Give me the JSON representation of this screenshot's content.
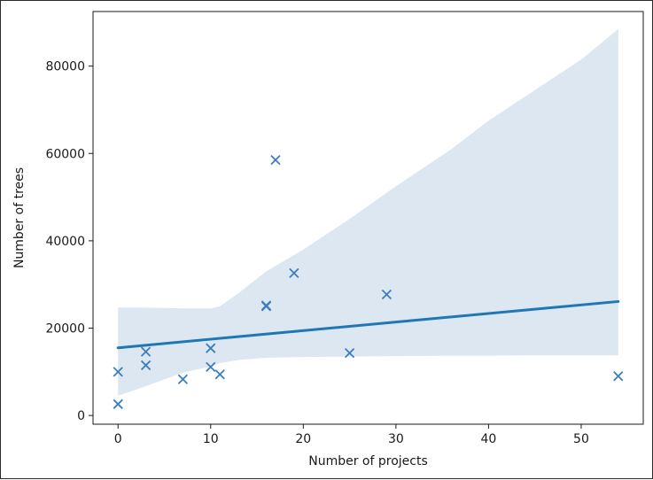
{
  "chart_data": {
    "type": "scatter",
    "title": "",
    "xlabel": "Number of projects",
    "ylabel": "Number of trees",
    "xlim": [
      -2.7,
      56.7
    ],
    "ylim": [
      -2000,
      92500
    ],
    "xticks": [
      0,
      10,
      20,
      30,
      40,
      50
    ],
    "yticks": [
      0,
      20000,
      40000,
      60000,
      80000
    ],
    "grid": false,
    "legend": "none",
    "marker": "x",
    "color": "#3a7ebf",
    "points": [
      {
        "x": 0,
        "y": 10000
      },
      {
        "x": 0,
        "y": 2600
      },
      {
        "x": 3,
        "y": 14600
      },
      {
        "x": 3,
        "y": 11500
      },
      {
        "x": 7,
        "y": 8300
      },
      {
        "x": 10,
        "y": 15400
      },
      {
        "x": 10,
        "y": 11100
      },
      {
        "x": 11,
        "y": 9400
      },
      {
        "x": 16,
        "y": 25000
      },
      {
        "x": 16,
        "y": 25200
      },
      {
        "x": 17,
        "y": 58500
      },
      {
        "x": 19,
        "y": 32600
      },
      {
        "x": 25,
        "y": 14300
      },
      {
        "x": 29,
        "y": 27700
      },
      {
        "x": 54,
        "y": 9000
      }
    ],
    "regression_line": {
      "x": [
        0,
        54
      ],
      "y": [
        15500,
        26100
      ],
      "color": "#1f77b4"
    },
    "confidence_band": {
      "color": "#dce7f2",
      "x": [
        0,
        3,
        7,
        10,
        11,
        13,
        16,
        20,
        25,
        30,
        36,
        40,
        45,
        50,
        54
      ],
      "upper": [
        24700,
        24700,
        24500,
        24500,
        25000,
        28000,
        33000,
        38000,
        45000,
        52500,
        61000,
        67500,
        74500,
        81500,
        88500
      ],
      "lower": [
        4500,
        6700,
        9800,
        11200,
        12000,
        12700,
        13200,
        13400,
        13500,
        13600,
        13700,
        13700,
        13800,
        13800,
        13800
      ]
    }
  }
}
